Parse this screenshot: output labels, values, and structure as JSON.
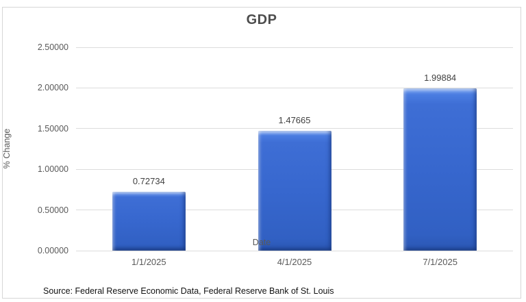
{
  "chart_data": {
    "type": "bar",
    "title": "GDP",
    "categories": [
      "1/1/2025",
      "4/1/2025",
      "7/1/2025"
    ],
    "values": [
      0.72734,
      1.47665,
      1.99884
    ],
    "data_labels": [
      "0.72734",
      "1.47665",
      "1.99884"
    ],
    "xlabel": "Date",
    "ylabel": "% Change",
    "ylim": [
      0,
      2.5
    ],
    "ytick_step": 0.5,
    "ytick_labels": [
      "0.00000",
      "0.50000",
      "1.00000",
      "1.50000",
      "2.00000",
      "2.50000"
    ],
    "grid": true,
    "legend_position": "none",
    "bar_color": "#3767ce",
    "gridline_color": "#dcdcdc",
    "source_note": "Source: Federal Reserve Economic Data, Federal Reserve Bank of St. Louis"
  }
}
